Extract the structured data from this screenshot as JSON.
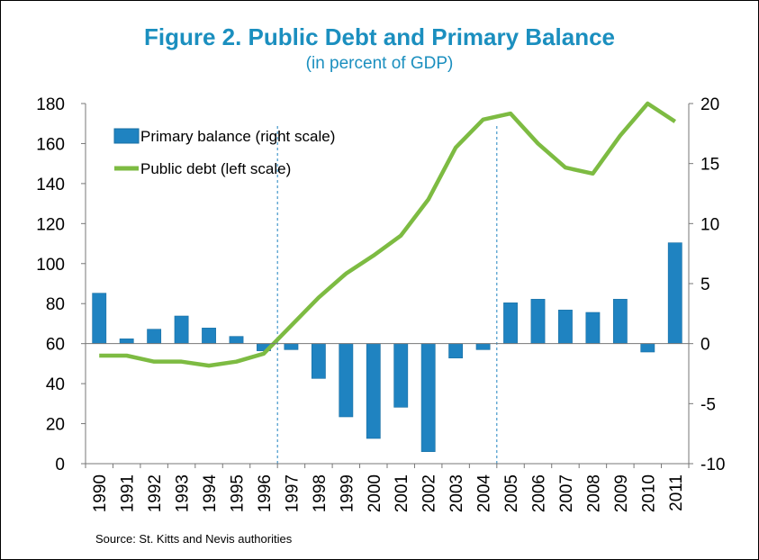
{
  "header": {
    "title": "Figure 2. Public Debt and Primary Balance",
    "subtitle": "(in percent of GDP)"
  },
  "source": "Source: St. Kitts and Nevis authorities",
  "colors": {
    "title": "#1b8fbf",
    "bar": "#1f83c1",
    "line": "#7dbb42",
    "vline": "#1f83c1"
  },
  "chart_data": {
    "type": "bar",
    "categories": [
      "1990",
      "1991",
      "1992",
      "1993",
      "1994",
      "1995",
      "1996",
      "1997",
      "1998",
      "1999",
      "2000",
      "2001",
      "2002",
      "2003",
      "2004",
      "2005",
      "2006",
      "2007",
      "2008",
      "2009",
      "2010",
      "2011"
    ],
    "series": [
      {
        "name": "Primary balance  (right scale)",
        "type": "bar",
        "axis": "right",
        "values": [
          4.2,
          0.4,
          1.2,
          2.3,
          1.3,
          0.6,
          -0.6,
          -0.5,
          -2.9,
          -6.1,
          -7.9,
          -5.3,
          -9.0,
          -1.2,
          -0.5,
          3.4,
          3.7,
          2.8,
          2.6,
          3.7,
          -0.7,
          8.4
        ]
      },
      {
        "name": "Public debt  (left scale)",
        "type": "line",
        "axis": "left",
        "values": [
          54,
          54,
          51,
          51,
          49,
          51,
          55,
          69,
          83,
          95,
          104,
          114,
          132,
          158,
          172,
          175,
          160,
          148,
          145,
          164,
          180,
          171
        ]
      }
    ],
    "left_axis": {
      "ylim": [
        0,
        180
      ],
      "ticks": [
        "0",
        "20",
        "40",
        "60",
        "80",
        "100",
        "120",
        "140",
        "160",
        "180"
      ]
    },
    "right_axis": {
      "ylim": [
        -10,
        20
      ],
      "ticks": [
        "-10",
        "-5",
        "0",
        "5",
        "10",
        "15",
        "20"
      ]
    },
    "reference_lines_between": [
      [
        "1996",
        "1997"
      ],
      [
        "2004",
        "2005"
      ]
    ],
    "legend_position": "top-left"
  }
}
